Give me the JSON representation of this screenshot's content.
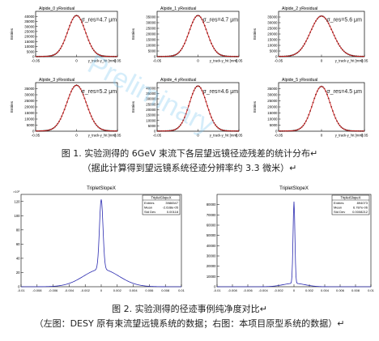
{
  "figure1": {
    "caption_line1": "图 1. 实验测得的 6GeV 束流下各层望远镜径迹残差的统计分布↵",
    "caption_line2": "（据此计算得到望远镜系统径迹分辨率约 3.3 微米）↵",
    "watermark": "Preliminary"
  },
  "figure2": {
    "caption_line1": "图 2. 实验测得的径迹事例纯净度对比↵",
    "caption_line2": "（左图：DESY 原有束流望远镜系统的数据；右图：本项目原型系统的数据）↵"
  },
  "colors": {
    "hist_black": "#111111",
    "fit_red": "#d62020",
    "hist_blue": "#2a2ab0",
    "sigma_color": "#1a1a1a"
  },
  "chart_data": [
    {
      "type": "histogram",
      "title": "Alpide_0 yResidual",
      "ylabel": "Entries",
      "xlabel": "y_track-y_hit [mm]",
      "xlim": [
        -0.05,
        0.05
      ],
      "ylim": [
        0,
        45000
      ],
      "peak": 40500,
      "sigma_label": "σ_res=4.7 μm",
      "sigma_mm": 0.0047,
      "yticks": [
        0,
        5000,
        10000,
        15000,
        20000,
        25000,
        30000,
        35000,
        40000
      ],
      "ytick_labels": [
        "0",
        "5000",
        "10000",
        "15000",
        "20000",
        "25000",
        "30000",
        "35000",
        "40000"
      ],
      "xtick_labels": [
        "-0.05",
        "0",
        "0.05"
      ]
    },
    {
      "type": "histogram",
      "title": "Alpide_1 yResidual",
      "ylabel": "Entries",
      "xlabel": "y_track-y_hit [mm]",
      "xlim": [
        -0.05,
        0.05
      ],
      "ylim": [
        0,
        40000
      ],
      "peak": 36000,
      "sigma_label": "σ_res=4.7 μm",
      "sigma_mm": 0.0047,
      "yticks": [
        0,
        5000,
        10000,
        15000,
        20000,
        25000,
        30000,
        35000
      ],
      "ytick_labels": [
        "0",
        "5000",
        "10000",
        "15000",
        "20000",
        "25000",
        "30000",
        "35000"
      ],
      "xtick_labels": [
        "-0.05",
        "0",
        "0.05"
      ]
    },
    {
      "type": "histogram",
      "title": "Alpide_2 yResidual",
      "ylabel": "Entries",
      "xlabel": "y_track-y_hit [mm]",
      "xlim": [
        -0.05,
        0.05
      ],
      "ylim": [
        0,
        40000
      ],
      "peak": 35500,
      "sigma_label": "σ_res=5.6 μm",
      "sigma_mm": 0.0056,
      "yticks": [
        0,
        5000,
        10000,
        15000,
        20000,
        25000,
        30000,
        35000
      ],
      "ytick_labels": [
        "0",
        "5000",
        "10000",
        "15000",
        "20000",
        "25000",
        "30000",
        "35000"
      ],
      "xtick_labels": [
        "-0.05",
        "0",
        "0.05"
      ]
    },
    {
      "type": "histogram",
      "title": "Alpide_3 yResidual",
      "ylabel": "Entries",
      "xlabel": "y_track-y_hit [mm]",
      "xlim": [
        -0.05,
        0.05
      ],
      "ylim": [
        0,
        40000
      ],
      "peak": 37500,
      "sigma_label": "σ_res=5.2 μm",
      "sigma_mm": 0.0052,
      "yticks": [
        0,
        5000,
        10000,
        15000,
        20000,
        25000,
        30000,
        35000
      ],
      "ytick_labels": [
        "0",
        "5000",
        "10000",
        "15000",
        "20000",
        "25000",
        "30000",
        "35000"
      ],
      "xtick_labels": [
        "-0.05",
        "0",
        "0.05"
      ]
    },
    {
      "type": "histogram",
      "title": "Alpide_4 yResidual",
      "ylabel": "Entries",
      "xlabel": "y_track-y_hit [mm]",
      "xlim": [
        -0.05,
        0.05
      ],
      "ylim": [
        0,
        45000
      ],
      "peak": 41500,
      "sigma_label": "σ_res=4.6 μm",
      "sigma_mm": 0.0046,
      "yticks": [
        0,
        5000,
        10000,
        15000,
        20000,
        25000,
        30000,
        35000,
        40000
      ],
      "ytick_labels": [
        "0",
        "5000",
        "10000",
        "15000",
        "20000",
        "25000",
        "30000",
        "35000",
        "40000"
      ],
      "xtick_labels": [
        "-0.05",
        "0",
        "0.05"
      ]
    },
    {
      "type": "histogram",
      "title": "Alpide_5 yResidual",
      "ylabel": "Entries",
      "xlabel": "y_track-y_hit [mm]",
      "xlim": [
        -0.05,
        0.05
      ],
      "ylim": [
        0,
        40000
      ],
      "peak": 36500,
      "sigma_label": "σ_res=4.5 μm",
      "sigma_mm": 0.0045,
      "yticks": [
        0,
        5000,
        10000,
        15000,
        20000,
        25000,
        30000,
        35000
      ],
      "ytick_labels": [
        "0",
        "5000",
        "10000",
        "15000",
        "20000",
        "25000",
        "30000",
        "35000"
      ],
      "xtick_labels": [
        "-0.05",
        "0",
        "0.05"
      ]
    },
    {
      "type": "histogram",
      "title": "TripletSlopeX",
      "exponent_label": "×10³",
      "xlim": [
        -0.01,
        0.01
      ],
      "ylim": [
        0,
        130
      ],
      "peak": 123,
      "yticks": [
        0,
        20,
        40,
        60,
        80,
        100,
        120
      ],
      "ytick_labels": [
        "0",
        "20",
        "40",
        "60",
        "80",
        "100",
        "120"
      ],
      "xticks": [
        -0.01,
        -0.008,
        -0.006,
        -0.004,
        -0.002,
        0,
        0.002,
        0.004,
        0.006,
        0.008,
        0.01
      ],
      "xtick_labels": [
        "-0.01",
        "-0.008",
        "-0.006",
        "-0.004",
        "-0.002",
        "0",
        "0.002",
        "0.004",
        "0.006",
        "0.008",
        "0.01"
      ],
      "stats": {
        "name": "TripletSlopeX",
        "rows": [
          [
            "Entries",
            "3986547"
          ],
          [
            "Mean",
            "-2.638e-05"
          ],
          [
            "Std Dev",
            "0.00118"
          ]
        ]
      }
    },
    {
      "type": "histogram",
      "title": "TripletSlopeX",
      "xlim": [
        -0.01,
        0.01
      ],
      "ylim": [
        0,
        90000
      ],
      "peak": 83000,
      "yticks": [
        0,
        10000,
        20000,
        30000,
        40000,
        50000,
        60000,
        70000,
        80000
      ],
      "ytick_labels": [
        "0",
        "10000",
        "20000",
        "30000",
        "40000",
        "50000",
        "60000",
        "70000",
        "80000"
      ],
      "xticks": [
        -0.01,
        -0.008,
        -0.006,
        -0.004,
        -0.002,
        0,
        0.002,
        0.004,
        0.006,
        0.008,
        0.01
      ],
      "xtick_labels": [
        "-0.01",
        "-0.008",
        "-0.006",
        "-0.004",
        "-0.002",
        "0",
        "0.002",
        "0.004",
        "0.006",
        "0.008",
        "0.01"
      ],
      "stats": {
        "name": "TripletSlopeX",
        "rows": [
          [
            "Entries",
            "894073"
          ],
          [
            "Mean",
            "6.787e-06"
          ],
          [
            "Std Dev",
            "0.0008212"
          ]
        ]
      }
    }
  ]
}
